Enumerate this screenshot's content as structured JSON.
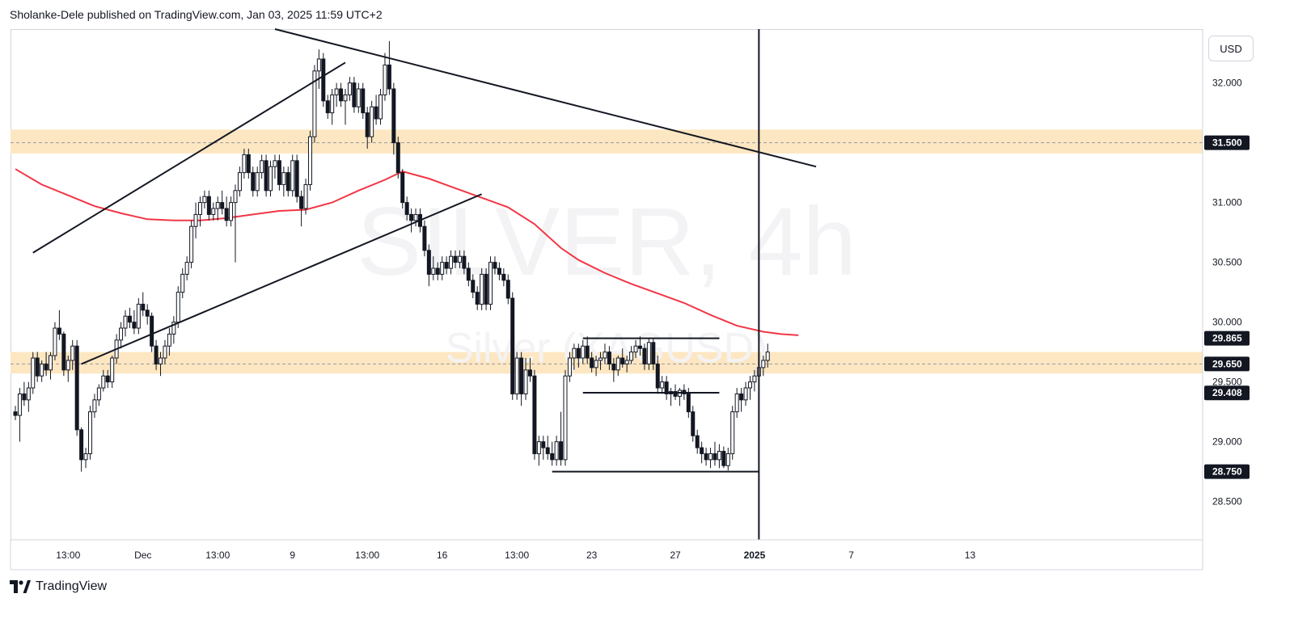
{
  "header": {
    "publish_line": "Sholanke-Dele published on TradingView.com, Jan 03, 2025 11:59 UTC+2"
  },
  "toolbar": {
    "currency": "USD"
  },
  "footer": {
    "brand": "TradingView",
    "logo_icon": "tradingview-logo-icon"
  },
  "chart_data": {
    "type": "candlestick",
    "watermark_symbol": "SILVER, 4h",
    "watermark_name": "Silver (XAGUSD)",
    "ylim": [
      28.18,
      32.45
    ],
    "y_ticks": [
      {
        "v": 32.0,
        "label": "32.000"
      },
      {
        "v": 31.0,
        "label": "31.000"
      },
      {
        "v": 30.5,
        "label": "30.500"
      },
      {
        "v": 30.0,
        "label": "30.000"
      },
      {
        "v": 29.5,
        "label": "29.500"
      },
      {
        "v": 29.0,
        "label": "29.000"
      },
      {
        "v": 28.5,
        "label": "28.500"
      }
    ],
    "price_labels": [
      {
        "v": 31.5,
        "label": "31.500"
      },
      {
        "v": 29.865,
        "label": "29.865"
      },
      {
        "v": 29.65,
        "label": "29.650"
      },
      {
        "v": 29.408,
        "label": "29.408"
      },
      {
        "v": 28.75,
        "label": "28.750"
      }
    ],
    "x_ticks": [
      {
        "i": 12,
        "label": "13:00",
        "bold": false
      },
      {
        "i": 29,
        "label": "Dec",
        "bold": false
      },
      {
        "i": 46,
        "label": "13:00",
        "bold": false
      },
      {
        "i": 63,
        "label": "9",
        "bold": false
      },
      {
        "i": 80,
        "label": "13:00",
        "bold": false
      },
      {
        "i": 97,
        "label": "16",
        "bold": false
      },
      {
        "i": 114,
        "label": "13:00",
        "bold": false
      },
      {
        "i": 131,
        "label": "23",
        "bold": false
      },
      {
        "i": 150,
        "label": "27",
        "bold": false
      },
      {
        "i": 168,
        "label": "2025",
        "bold": true
      },
      {
        "i": 190,
        "label": "7",
        "bold": false
      },
      {
        "i": 217,
        "label": "13",
        "bold": false
      }
    ],
    "zones": [
      {
        "name": "resistance-zone",
        "from": 31.41,
        "to": 31.61,
        "mid": 31.5,
        "color": "#fde7c2"
      },
      {
        "name": "support-zone",
        "from": 29.57,
        "to": 29.75,
        "mid": 29.65,
        "color": "#fde7c2"
      }
    ],
    "trendlines": [
      {
        "name": "descending-trendline",
        "i1": 59,
        "v1": 32.45,
        "i2": 182,
        "v2": 31.3
      },
      {
        "name": "channel-upper-line",
        "i1": 4,
        "v1": 30.58,
        "i2": 75,
        "v2": 32.17
      },
      {
        "name": "channel-lower-line",
        "i1": 15,
        "v1": 29.65,
        "i2": 106,
        "v2": 31.07
      },
      {
        "name": "range-top-line",
        "i1": 129,
        "v1": 29.865,
        "i2": 160,
        "v2": 29.865
      },
      {
        "name": "range-mid-line",
        "i1": 129,
        "v1": 29.41,
        "i2": 160,
        "v2": 29.41
      },
      {
        "name": "range-low-line",
        "i1": 122,
        "v1": 28.75,
        "i2": 169,
        "v2": 28.75
      }
    ],
    "vertical_line_i": 169,
    "ma_color": "#f23645",
    "ma": [
      [
        0,
        31.28
      ],
      [
        6,
        31.15
      ],
      [
        12,
        31.06
      ],
      [
        18,
        30.97
      ],
      [
        24,
        30.91
      ],
      [
        30,
        30.86
      ],
      [
        36,
        30.85
      ],
      [
        42,
        30.85
      ],
      [
        48,
        30.87
      ],
      [
        54,
        30.9
      ],
      [
        60,
        30.93
      ],
      [
        66,
        30.94
      ],
      [
        72,
        31.0
      ],
      [
        78,
        31.1
      ],
      [
        84,
        31.19
      ],
      [
        88,
        31.26
      ],
      [
        94,
        31.2
      ],
      [
        100,
        31.12
      ],
      [
        106,
        31.04
      ],
      [
        112,
        30.96
      ],
      [
        118,
        30.82
      ],
      [
        124,
        30.62
      ],
      [
        128,
        30.52
      ],
      [
        134,
        30.41
      ],
      [
        140,
        30.32
      ],
      [
        146,
        30.24
      ],
      [
        152,
        30.16
      ],
      [
        158,
        30.06
      ],
      [
        164,
        29.97
      ],
      [
        170,
        29.92
      ],
      [
        174,
        29.9
      ],
      [
        178,
        29.89
      ]
    ],
    "candles": [
      [
        29.25,
        29.3,
        29.18,
        29.22
      ],
      [
        29.22,
        29.45,
        29.0,
        29.4
      ],
      [
        29.4,
        29.5,
        29.3,
        29.35
      ],
      [
        29.35,
        29.5,
        29.25,
        29.45
      ],
      [
        29.45,
        29.75,
        29.4,
        29.7
      ],
      [
        29.7,
        29.75,
        29.5,
        29.55
      ],
      [
        29.55,
        29.68,
        29.5,
        29.65
      ],
      [
        29.65,
        29.75,
        29.55,
        29.6
      ],
      [
        29.6,
        29.75,
        29.52,
        29.72
      ],
      [
        29.72,
        30.0,
        29.68,
        29.95
      ],
      [
        29.95,
        30.1,
        29.85,
        29.9
      ],
      [
        29.9,
        29.92,
        29.55,
        29.6
      ],
      [
        29.6,
        29.72,
        29.5,
        29.68
      ],
      [
        29.68,
        29.85,
        29.6,
        29.8
      ],
      [
        29.8,
        29.85,
        29.05,
        29.1
      ],
      [
        29.1,
        29.12,
        28.75,
        28.85
      ],
      [
        28.85,
        28.95,
        28.78,
        28.9
      ],
      [
        28.9,
        29.3,
        28.85,
        29.25
      ],
      [
        29.25,
        29.4,
        29.2,
        29.35
      ],
      [
        29.35,
        29.48,
        29.3,
        29.45
      ],
      [
        29.45,
        29.6,
        29.42,
        29.55
      ],
      [
        29.55,
        29.6,
        29.45,
        29.5
      ],
      [
        29.5,
        29.72,
        29.45,
        29.7
      ],
      [
        29.7,
        29.9,
        29.65,
        29.85
      ],
      [
        29.85,
        30.0,
        29.78,
        29.95
      ],
      [
        29.95,
        30.1,
        29.88,
        30.05
      ],
      [
        30.05,
        30.12,
        29.95,
        30.0
      ],
      [
        30.0,
        30.1,
        29.9,
        29.95
      ],
      [
        29.95,
        30.2,
        29.9,
        30.15
      ],
      [
        30.15,
        30.25,
        30.05,
        30.1
      ],
      [
        30.1,
        30.15,
        29.98,
        30.05
      ],
      [
        30.05,
        30.08,
        29.75,
        29.8
      ],
      [
        29.8,
        29.85,
        29.6,
        29.65
      ],
      [
        29.65,
        29.75,
        29.55,
        29.7
      ],
      [
        29.7,
        29.85,
        29.65,
        29.8
      ],
      [
        29.8,
        29.95,
        29.72,
        29.9
      ],
      [
        29.9,
        30.05,
        29.82,
        30.0
      ],
      [
        30.0,
        30.3,
        29.95,
        30.25
      ],
      [
        30.25,
        30.45,
        30.2,
        30.4
      ],
      [
        30.4,
        30.55,
        30.35,
        30.5
      ],
      [
        30.5,
        30.85,
        30.45,
        30.8
      ],
      [
        30.8,
        31.0,
        30.7,
        30.9
      ],
      [
        30.9,
        31.05,
        30.8,
        31.0
      ],
      [
        31.0,
        31.1,
        30.95,
        31.05
      ],
      [
        31.05,
        31.1,
        30.85,
        30.9
      ],
      [
        30.9,
        31.0,
        30.85,
        30.95
      ],
      [
        30.95,
        31.05,
        30.85,
        31.0
      ],
      [
        31.0,
        31.1,
        30.9,
        30.95
      ],
      [
        30.95,
        31.05,
        30.8,
        30.85
      ],
      [
        30.85,
        31.05,
        30.8,
        31.0
      ],
      [
        31.0,
        31.15,
        30.5,
        31.1
      ],
      [
        31.1,
        31.3,
        31.05,
        31.25
      ],
      [
        31.25,
        31.45,
        31.2,
        31.4
      ],
      [
        31.4,
        31.45,
        31.2,
        31.25
      ],
      [
        31.25,
        31.3,
        31.05,
        31.1
      ],
      [
        31.1,
        31.3,
        31.05,
        31.25
      ],
      [
        31.25,
        31.4,
        31.2,
        31.35
      ],
      [
        31.35,
        31.4,
        31.05,
        31.1
      ],
      [
        31.1,
        31.35,
        31.05,
        31.3
      ],
      [
        31.3,
        31.4,
        31.2,
        31.35
      ],
      [
        31.35,
        31.4,
        31.1,
        31.15
      ],
      [
        31.15,
        31.3,
        31.05,
        31.25
      ],
      [
        31.25,
        31.3,
        31.05,
        31.1
      ],
      [
        31.1,
        31.4,
        31.05,
        31.35
      ],
      [
        31.35,
        31.4,
        31.0,
        31.05
      ],
      [
        31.05,
        31.1,
        30.8,
        30.95
      ],
      [
        30.95,
        31.2,
        30.9,
        31.15
      ],
      [
        31.15,
        31.6,
        31.1,
        31.55
      ],
      [
        31.55,
        32.15,
        31.5,
        32.1
      ],
      [
        32.1,
        32.28,
        31.95,
        32.2
      ],
      [
        32.2,
        32.25,
        31.8,
        31.85
      ],
      [
        31.85,
        31.9,
        31.7,
        31.75
      ],
      [
        31.75,
        31.95,
        31.65,
        31.9
      ],
      [
        31.9,
        32.0,
        31.8,
        31.95
      ],
      [
        31.95,
        32.0,
        31.8,
        31.85
      ],
      [
        31.85,
        31.95,
        31.65,
        31.9
      ],
      [
        31.9,
        32.05,
        31.85,
        32.0
      ],
      [
        32.0,
        32.05,
        31.75,
        31.8
      ],
      [
        31.8,
        32.0,
        31.75,
        31.95
      ],
      [
        31.95,
        32.0,
        31.7,
        31.75
      ],
      [
        31.75,
        31.8,
        31.45,
        31.55
      ],
      [
        31.55,
        31.85,
        31.5,
        31.8
      ],
      [
        31.8,
        31.9,
        31.65,
        31.7
      ],
      [
        31.7,
        31.95,
        31.65,
        31.9
      ],
      [
        31.9,
        32.25,
        31.85,
        32.15
      ],
      [
        32.15,
        32.35,
        31.9,
        31.95
      ],
      [
        31.95,
        32.0,
        31.4,
        31.5
      ],
      [
        31.5,
        31.55,
        31.2,
        31.25
      ],
      [
        31.25,
        31.28,
        30.95,
        31.0
      ],
      [
        31.0,
        31.05,
        30.85,
        30.9
      ],
      [
        30.9,
        30.95,
        30.75,
        30.85
      ],
      [
        30.85,
        30.95,
        30.8,
        30.9
      ],
      [
        30.9,
        30.95,
        30.75,
        30.8
      ],
      [
        30.8,
        30.85,
        30.55,
        30.6
      ],
      [
        30.6,
        30.65,
        30.3,
        30.4
      ],
      [
        30.4,
        30.55,
        30.35,
        30.45
      ],
      [
        30.45,
        30.5,
        30.35,
        30.4
      ],
      [
        30.4,
        30.55,
        30.35,
        30.5
      ],
      [
        30.5,
        30.55,
        30.4,
        30.45
      ],
      [
        30.45,
        30.6,
        30.4,
        30.55
      ],
      [
        30.55,
        30.6,
        30.45,
        30.5
      ],
      [
        30.5,
        30.6,
        30.45,
        30.55
      ],
      [
        30.55,
        30.6,
        30.4,
        30.45
      ],
      [
        30.45,
        30.5,
        30.3,
        30.35
      ],
      [
        30.35,
        30.4,
        30.2,
        30.25
      ],
      [
        30.25,
        30.3,
        30.1,
        30.15
      ],
      [
        30.15,
        30.45,
        30.1,
        30.4
      ],
      [
        30.4,
        30.45,
        30.1,
        30.15
      ],
      [
        30.15,
        30.55,
        30.1,
        30.5
      ],
      [
        30.5,
        30.55,
        30.4,
        30.45
      ],
      [
        30.45,
        30.5,
        30.35,
        30.4
      ],
      [
        30.4,
        30.45,
        30.3,
        30.35
      ],
      [
        30.35,
        30.4,
        30.15,
        30.2
      ],
      [
        30.2,
        30.25,
        29.35,
        29.4
      ],
      [
        29.4,
        29.75,
        29.35,
        29.7
      ],
      [
        29.7,
        29.75,
        29.3,
        29.4
      ],
      [
        29.4,
        29.7,
        29.35,
        29.6
      ],
      [
        29.6,
        29.7,
        29.5,
        29.55
      ],
      [
        29.55,
        29.6,
        28.85,
        28.9
      ],
      [
        28.9,
        29.05,
        28.8,
        29.0
      ],
      [
        29.0,
        29.05,
        28.85,
        28.95
      ],
      [
        28.95,
        29.05,
        28.85,
        28.9
      ],
      [
        28.9,
        29.0,
        28.8,
        28.85
      ],
      [
        28.85,
        29.05,
        28.8,
        29.0
      ],
      [
        29.0,
        29.25,
        28.8,
        28.85
      ],
      [
        28.85,
        29.6,
        28.8,
        29.55
      ],
      [
        29.55,
        29.75,
        29.5,
        29.7
      ],
      [
        29.7,
        29.82,
        29.6,
        29.78
      ],
      [
        29.78,
        29.82,
        29.62,
        29.7
      ],
      [
        29.7,
        29.85,
        29.65,
        29.8
      ],
      [
        29.8,
        29.88,
        29.65,
        29.7
      ],
      [
        29.7,
        29.75,
        29.58,
        29.62
      ],
      [
        29.62,
        29.72,
        29.55,
        29.68
      ],
      [
        29.68,
        29.75,
        29.6,
        29.7
      ],
      [
        29.7,
        29.82,
        29.65,
        29.75
      ],
      [
        29.75,
        29.8,
        29.6,
        29.65
      ],
      [
        29.65,
        29.7,
        29.5,
        29.6
      ],
      [
        29.6,
        29.72,
        29.55,
        29.7
      ],
      [
        29.7,
        29.78,
        29.62,
        29.65
      ],
      [
        29.65,
        29.72,
        29.58,
        29.68
      ],
      [
        29.68,
        29.8,
        29.65,
        29.75
      ],
      [
        29.75,
        29.85,
        29.7,
        29.8
      ],
      [
        29.8,
        29.88,
        29.72,
        29.78
      ],
      [
        29.78,
        29.82,
        29.6,
        29.65
      ],
      [
        29.65,
        29.87,
        29.6,
        29.83
      ],
      [
        29.83,
        29.87,
        29.6,
        29.65
      ],
      [
        29.65,
        29.72,
        29.4,
        29.45
      ],
      [
        29.45,
        29.55,
        29.4,
        29.5
      ],
      [
        29.5,
        29.55,
        29.35,
        29.4
      ],
      [
        29.4,
        29.45,
        29.3,
        29.42
      ],
      [
        29.42,
        29.48,
        29.35,
        29.38
      ],
      [
        29.38,
        29.45,
        29.3,
        29.43
      ],
      [
        29.43,
        29.48,
        29.35,
        29.4
      ],
      [
        29.4,
        29.45,
        29.2,
        29.25
      ],
      [
        29.25,
        29.3,
        29.0,
        29.05
      ],
      [
        29.05,
        29.1,
        28.9,
        28.95
      ],
      [
        28.95,
        29.0,
        28.82,
        28.9
      ],
      [
        28.9,
        28.95,
        28.8,
        28.85
      ],
      [
        28.85,
        28.95,
        28.78,
        28.9
      ],
      [
        28.9,
        29.0,
        28.8,
        28.85
      ],
      [
        28.85,
        28.98,
        28.78,
        28.92
      ],
      [
        28.92,
        28.96,
        28.78,
        28.8
      ],
      [
        28.8,
        28.95,
        28.76,
        28.9
      ],
      [
        28.9,
        29.3,
        28.85,
        29.25
      ],
      [
        29.25,
        29.45,
        29.2,
        29.4
      ],
      [
        29.4,
        29.45,
        29.25,
        29.35
      ],
      [
        29.35,
        29.5,
        29.3,
        29.45
      ],
      [
        29.45,
        29.55,
        29.35,
        29.5
      ],
      [
        29.5,
        29.6,
        29.42,
        29.55
      ],
      [
        29.55,
        29.68,
        29.5,
        29.62
      ],
      [
        29.62,
        29.72,
        29.55,
        29.68
      ],
      [
        29.68,
        29.82,
        29.62,
        29.75
      ]
    ]
  }
}
